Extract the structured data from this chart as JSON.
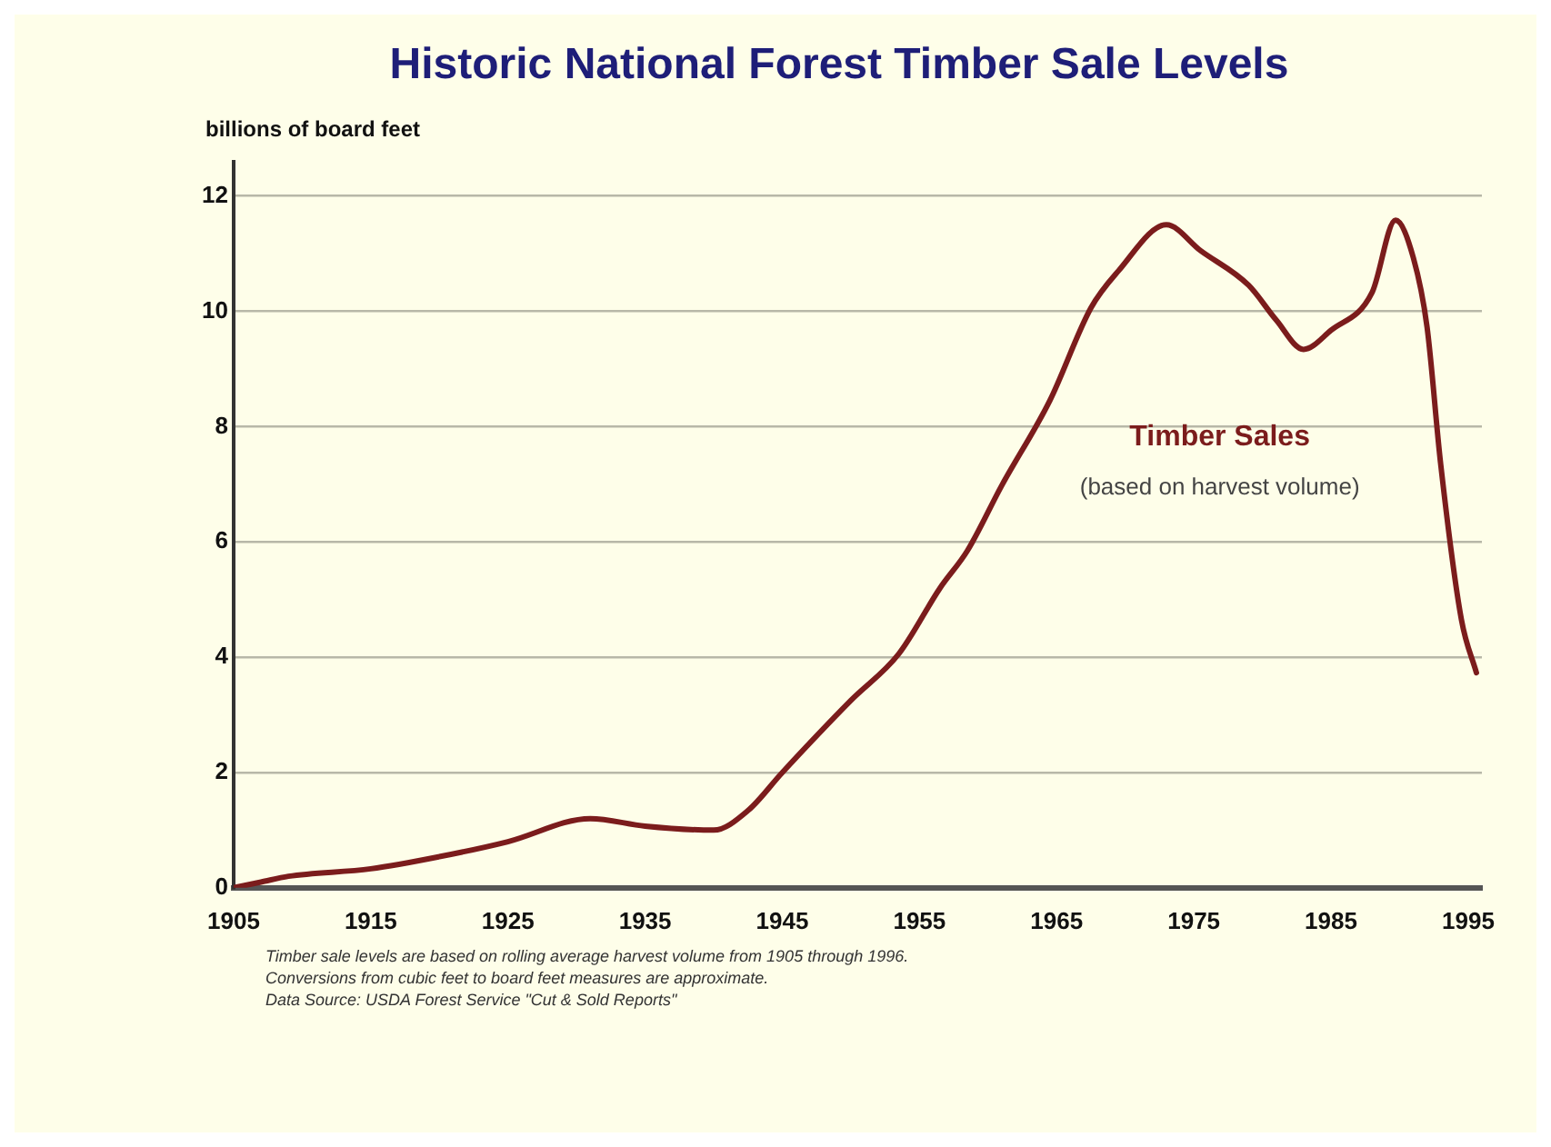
{
  "chart_data": {
    "type": "line",
    "title": "Historic National Forest Timber Sale Levels",
    "ylabel": "billions of board feet",
    "series": [
      {
        "name": "Timber Sales",
        "color": "#7b1c1c",
        "x": [
          1905,
          1907,
          1909,
          1915,
          1920,
          1925,
          1931,
          1935,
          1940,
          1942.5,
          1945,
          1950,
          1953.5,
          1956.5,
          1958.5,
          1961,
          1964.5,
          1967.5,
          1969.5,
          1973,
          1975.5,
          1979,
          1981,
          1983,
          1985,
          1988,
          1989.7,
          1991,
          1992,
          1993,
          1994.5,
          1995.6
        ],
        "values": [
          0,
          0.1,
          0.2,
          0.33,
          0.54,
          0.8,
          1.2,
          1.07,
          1.0,
          1.34,
          2.0,
          3.25,
          4.06,
          5.2,
          5.85,
          6.98,
          8.45,
          10.06,
          10.7,
          11.5,
          11.05,
          10.45,
          9.85,
          9.34,
          9.67,
          10.33,
          11.58,
          10.93,
          9.73,
          7.34,
          4.66,
          3.73
        ]
      }
    ],
    "xlim": [
      1905,
      1996
    ],
    "xticks": [
      1905,
      1915,
      1925,
      1935,
      1945,
      1955,
      1965,
      1975,
      1985,
      1995
    ],
    "ylim": [
      0,
      12.6
    ],
    "yticks": [
      0,
      2,
      4,
      6,
      8,
      10,
      12
    ],
    "grid": "y",
    "legend": false,
    "marker": "none",
    "line_style": "solid",
    "annotations": [
      "(based on harvest volume)",
      "Timber sale levels are based on rolling average harvest volume from 1905 through 1996.",
      "Conversions from cubic feet to board feet measures are approximate.",
      "Data Source: USDA Forest Service \"Cut & Sold Reports\""
    ]
  }
}
